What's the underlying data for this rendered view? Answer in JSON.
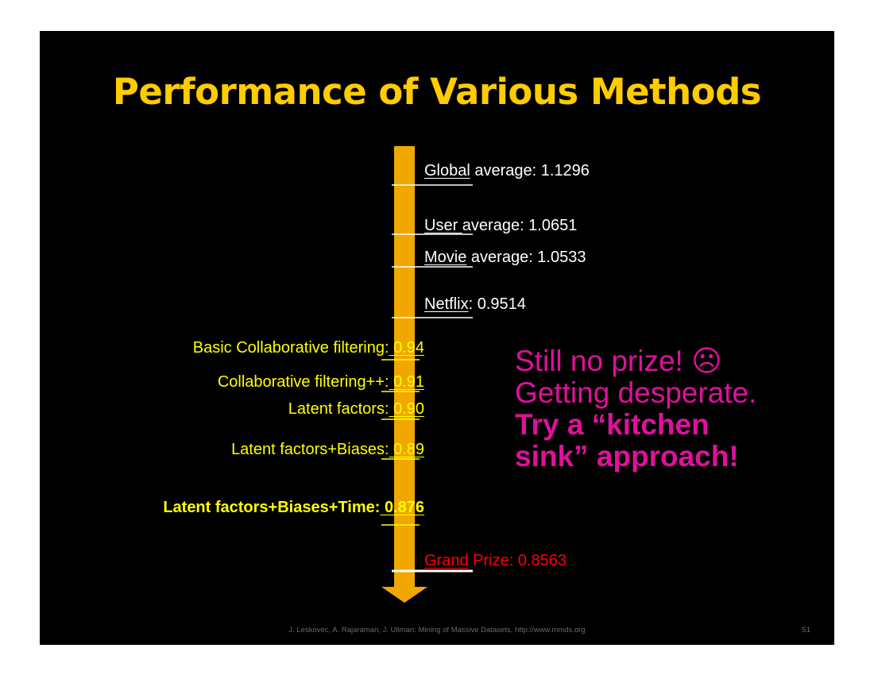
{
  "slide": {
    "title": "Performance of Various Methods",
    "footer": "J. Leskovec, A. Rajaraman, J. Ullman: Mining of Massive Datasets, http://www.mmds.org",
    "slide_number": "51"
  },
  "colors": {
    "background": "#000000",
    "title": "#ffcc00",
    "arrow": "#f0a800",
    "right_labels": "#ffffff",
    "left_labels": "#ffff00",
    "grand_prize": "#ff0000",
    "callout": "#e0109c"
  },
  "scale": {
    "right_markers": [
      {
        "pre": "Global",
        "post": " average: 1.1296",
        "rmse": 1.1296
      },
      {
        "pre": "User ",
        "post": "average: 1.0651",
        "rmse": 1.0651
      },
      {
        "pre": "Movie",
        "post": " average: 1.0533",
        "rmse": 1.0533
      },
      {
        "pre": "Netflix",
        "post": ": 0.9514",
        "rmse": 0.9514
      },
      {
        "pre": "Grand",
        "post": " Prize: 0.8563",
        "rmse": 0.8563
      }
    ],
    "left_markers": [
      {
        "pre": "Basic Collaborative filtering:",
        "post": " 0.94",
        "rmse": 0.94
      },
      {
        "pre": "Collaborative filtering++:",
        "post": " 0.91",
        "rmse": 0.91
      },
      {
        "pre": "Latent factors:",
        "post": " 0.90",
        "rmse": 0.9
      },
      {
        "pre": "Latent factors+Biases:",
        "post": " 0.89",
        "rmse": 0.89
      },
      {
        "pre": "Latent factors+Biases+Time:",
        "post": " 0.876",
        "rmse": 0.876
      }
    ]
  },
  "callout": {
    "line1": "Still no prize! ☹",
    "line2": "Getting desperate.",
    "line3": "Try a “kitchen",
    "line4": "sink” approach!"
  }
}
